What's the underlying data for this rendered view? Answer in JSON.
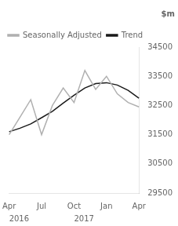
{
  "chart_data": {
    "type": "line",
    "title": "$m",
    "categories": [
      "Apr",
      null,
      null,
      "Jul",
      null,
      null,
      "Oct",
      null,
      null,
      "Jan",
      null,
      null,
      "Apr"
    ],
    "series": [
      {
        "name": "Seasonally Adjusted",
        "color": "#b0b0b0",
        "values": [
          31500,
          32100,
          32700,
          31500,
          32500,
          33100,
          32600,
          33700,
          33050,
          33500,
          32900,
          32600,
          32450
        ]
      },
      {
        "name": "Trend",
        "color": "#1a1a1a",
        "values": [
          31600,
          31720,
          31870,
          32080,
          32300,
          32580,
          32850,
          33100,
          33250,
          33280,
          33200,
          33020,
          32750
        ]
      }
    ],
    "ylim": [
      29500,
      34500
    ],
    "yticks": [
      29500,
      30500,
      31500,
      32500,
      33500,
      34500
    ],
    "grid": false,
    "legend": "upper left",
    "annotations": [
      "2016",
      "2017"
    ]
  }
}
